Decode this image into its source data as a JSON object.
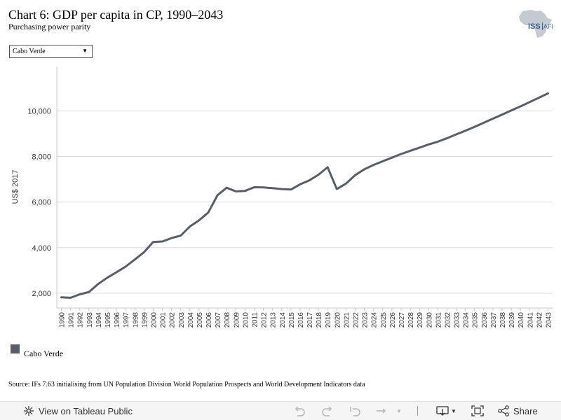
{
  "header": {
    "title": "Chart 6: GDP per capita in CP, 1990–2043",
    "subtitle": "Purchasing power parity",
    "logo_text_left": "ISS",
    "logo_text_right": "AFI"
  },
  "filter": {
    "selected": "Cabo Verde"
  },
  "legend": {
    "label": "Cabo Verde",
    "color": "#555e69"
  },
  "source": "Source: IFs 7.63 initialising from UN Population Division World Population Prospects and World Development Indicators data",
  "toolbar": {
    "view_label": "View on Tableau Public",
    "share_label": "Share"
  },
  "chart_data": {
    "type": "line",
    "title": "",
    "xlabel": "",
    "ylabel": "US$ 2017",
    "ylim": [
      1350,
      11950
    ],
    "yticks": [
      2000,
      4000,
      6000,
      8000,
      10000
    ],
    "ytick_labels": [
      "2,000",
      "4,000",
      "6,000",
      "8,000",
      "10,000"
    ],
    "grid": true,
    "x": [
      "1990",
      "1991",
      "1992",
      "1993",
      "1994",
      "1995",
      "1996",
      "1997",
      "1998",
      "1999",
      "2000",
      "2001",
      "2002",
      "2003",
      "2004",
      "2005",
      "2006",
      "2007",
      "2008",
      "2009",
      "2010",
      "2011",
      "2012",
      "2013",
      "2014",
      "2015",
      "2016",
      "2017",
      "2018",
      "2019",
      "2020",
      "2021",
      "2022",
      "2023",
      "2024",
      "2025",
      "2026",
      "2027",
      "2028",
      "2029",
      "2030",
      "2031",
      "2032",
      "2033",
      "2034",
      "2035",
      "2036",
      "2037",
      "2038",
      "2039",
      "2040",
      "2041",
      "2042",
      "2043"
    ],
    "series": [
      {
        "name": "Cabo Verde",
        "color": "#555e69",
        "values": [
          1820,
          1800,
          1950,
          2050,
          2400,
          2680,
          2920,
          3170,
          3480,
          3800,
          4250,
          4270,
          4420,
          4530,
          4930,
          5200,
          5540,
          6300,
          6630,
          6470,
          6490,
          6650,
          6640,
          6610,
          6570,
          6550,
          6780,
          6950,
          7200,
          7530,
          6570,
          6810,
          7180,
          7440,
          7630,
          7790,
          7950,
          8110,
          8250,
          8390,
          8530,
          8650,
          8800,
          8970,
          9130,
          9300,
          9480,
          9660,
          9840,
          10020,
          10200,
          10390,
          10580,
          10770
        ]
      }
    ]
  }
}
